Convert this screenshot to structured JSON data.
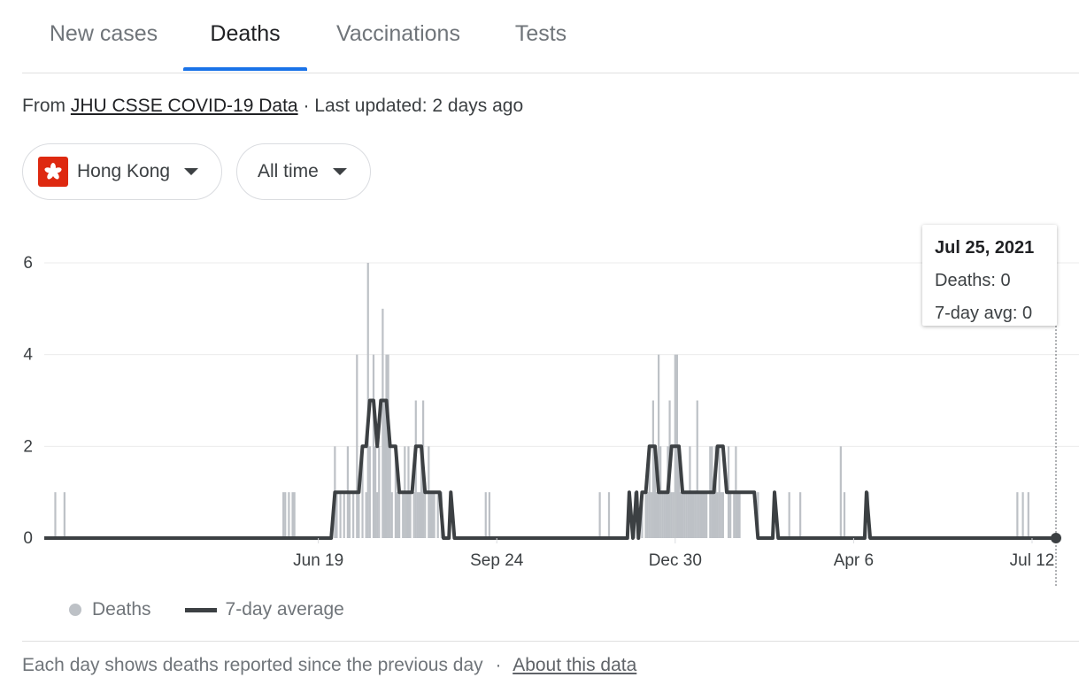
{
  "tabs": [
    {
      "label": "New cases",
      "active": false
    },
    {
      "label": "Deaths",
      "active": true
    },
    {
      "label": "Vaccinations",
      "active": false
    },
    {
      "label": "Tests",
      "active": false
    }
  ],
  "source": {
    "prefix": "From",
    "link": "JHU CSSE COVID-19 Data",
    "separator": "·",
    "updated": "Last updated: 2 days ago"
  },
  "filters": {
    "region": {
      "label": "Hong Kong",
      "icon": "hong-kong-flag-icon"
    },
    "range": {
      "label": "All time"
    }
  },
  "tooltip": {
    "date": "Jul 25, 2021",
    "deaths": "Deaths: 0",
    "avg": "7-day avg: 0"
  },
  "legend": {
    "deaths": "Deaths",
    "avg": "7-day average"
  },
  "footer": {
    "note": "Each day shows deaths reported since the previous day",
    "separator": "·",
    "link": "About this data"
  },
  "colors": {
    "accent": "#1a73e8",
    "bars": "#bdc1c6",
    "line": "#3c4043",
    "flag": "#de2910"
  },
  "chart_data": {
    "type": "bar",
    "title": "",
    "xlabel": "",
    "ylabel": "",
    "ylim": [
      0,
      6
    ],
    "yticks": [
      0,
      2,
      4,
      6
    ],
    "x_ticks": [
      "Jun 19",
      "Sep 24",
      "Dec 30",
      "Apr 6",
      "Jul 12"
    ],
    "x_range": [
      "Jan 22, 2020",
      "Jul 25, 2021"
    ],
    "grid": true,
    "legend_position": "bottom-left",
    "series": [
      {
        "name": "Deaths",
        "type": "bar",
        "points": [
          [
            "2020-01-28",
            1
          ],
          [
            "2020-02-02",
            1
          ],
          [
            "2020-05-31",
            1
          ],
          [
            "2020-06-01",
            1
          ],
          [
            "2020-06-03",
            1
          ],
          [
            "2020-06-05",
            1
          ],
          [
            "2020-06-06",
            1
          ],
          [
            "2020-06-28",
            2
          ],
          [
            "2020-06-29",
            1
          ],
          [
            "2020-07-01",
            1
          ],
          [
            "2020-07-03",
            1
          ],
          [
            "2020-07-05",
            2
          ],
          [
            "2020-07-06",
            1
          ],
          [
            "2020-07-08",
            1
          ],
          [
            "2020-07-10",
            4
          ],
          [
            "2020-07-11",
            1
          ],
          [
            "2020-07-13",
            2
          ],
          [
            "2020-07-15",
            1
          ],
          [
            "2020-07-16",
            6
          ],
          [
            "2020-07-17",
            2
          ],
          [
            "2020-07-19",
            4
          ],
          [
            "2020-07-20",
            2
          ],
          [
            "2020-07-21",
            1
          ],
          [
            "2020-07-22",
            2
          ],
          [
            "2020-07-24",
            5
          ],
          [
            "2020-07-25",
            3
          ],
          [
            "2020-07-26",
            4
          ],
          [
            "2020-07-27",
            4
          ],
          [
            "2020-07-28",
            2
          ],
          [
            "2020-07-29",
            1
          ],
          [
            "2020-07-31",
            2
          ],
          [
            "2020-08-01",
            1
          ],
          [
            "2020-08-02",
            1
          ],
          [
            "2020-08-04",
            1
          ],
          [
            "2020-08-05",
            2
          ],
          [
            "2020-08-06",
            1
          ],
          [
            "2020-08-07",
            2
          ],
          [
            "2020-08-08",
            1
          ],
          [
            "2020-08-10",
            1
          ],
          [
            "2020-08-11",
            3
          ],
          [
            "2020-08-12",
            1
          ],
          [
            "2020-08-13",
            1
          ],
          [
            "2020-08-14",
            2
          ],
          [
            "2020-08-15",
            3
          ],
          [
            "2020-08-16",
            1
          ],
          [
            "2020-08-18",
            2
          ],
          [
            "2020-08-19",
            1
          ],
          [
            "2020-08-20",
            1
          ],
          [
            "2020-08-21",
            1
          ],
          [
            "2020-08-23",
            1
          ],
          [
            "2020-08-25",
            1
          ],
          [
            "2020-09-18",
            1
          ],
          [
            "2020-09-20",
            1
          ],
          [
            "2020-11-19",
            1
          ],
          [
            "2020-11-24",
            1
          ],
          [
            "2020-12-08",
            1
          ],
          [
            "2020-12-12",
            1
          ],
          [
            "2020-12-14",
            1
          ],
          [
            "2020-12-15",
            1
          ],
          [
            "2020-12-16",
            2
          ],
          [
            "2020-12-17",
            1
          ],
          [
            "2020-12-18",
            3
          ],
          [
            "2020-12-19",
            2
          ],
          [
            "2020-12-20",
            1
          ],
          [
            "2020-12-21",
            4
          ],
          [
            "2020-12-22",
            2
          ],
          [
            "2020-12-23",
            1
          ],
          [
            "2020-12-24",
            1
          ],
          [
            "2020-12-25",
            1
          ],
          [
            "2020-12-26",
            2
          ],
          [
            "2020-12-27",
            3
          ],
          [
            "2020-12-28",
            1
          ],
          [
            "2020-12-29",
            1
          ],
          [
            "2020-12-30",
            4
          ],
          [
            "2020-12-31",
            4
          ],
          [
            "2021-01-01",
            2
          ],
          [
            "2021-01-02",
            1
          ],
          [
            "2021-01-03",
            1
          ],
          [
            "2021-01-04",
            1
          ],
          [
            "2021-01-05",
            1
          ],
          [
            "2021-01-06",
            1
          ],
          [
            "2021-01-07",
            2
          ],
          [
            "2021-01-08",
            1
          ],
          [
            "2021-01-09",
            1
          ],
          [
            "2021-01-10",
            1
          ],
          [
            "2021-01-11",
            3
          ],
          [
            "2021-01-12",
            1
          ],
          [
            "2021-01-13",
            1
          ],
          [
            "2021-01-14",
            1
          ],
          [
            "2021-01-15",
            1
          ],
          [
            "2021-01-16",
            1
          ],
          [
            "2021-01-18",
            2
          ],
          [
            "2021-01-19",
            2
          ],
          [
            "2021-01-20",
            1
          ],
          [
            "2021-01-21",
            2
          ],
          [
            "2021-01-22",
            1
          ],
          [
            "2021-01-23",
            2
          ],
          [
            "2021-01-24",
            1
          ],
          [
            "2021-01-25",
            1
          ],
          [
            "2021-01-28",
            2
          ],
          [
            "2021-01-29",
            1
          ],
          [
            "2021-01-31",
            1
          ],
          [
            "2021-02-01",
            2
          ],
          [
            "2021-02-02",
            1
          ],
          [
            "2021-02-03",
            1
          ],
          [
            "2021-02-13",
            1
          ],
          [
            "2021-03-02",
            1
          ],
          [
            "2021-03-08",
            1
          ],
          [
            "2021-03-30",
            2
          ],
          [
            "2021-04-01",
            1
          ],
          [
            "2021-04-14",
            1
          ],
          [
            "2021-07-04",
            1
          ],
          [
            "2021-07-07",
            1
          ],
          [
            "2021-07-10",
            1
          ]
        ]
      },
      {
        "name": "7-day average",
        "type": "line",
        "points": [
          [
            "2020-01-22",
            0
          ],
          [
            "2020-06-26",
            0
          ],
          [
            "2020-06-28",
            1
          ],
          [
            "2020-07-11",
            1
          ],
          [
            "2020-07-13",
            2
          ],
          [
            "2020-07-15",
            2
          ],
          [
            "2020-07-17",
            3
          ],
          [
            "2020-07-19",
            3
          ],
          [
            "2020-07-21",
            2
          ],
          [
            "2020-07-23",
            3
          ],
          [
            "2020-07-26",
            3
          ],
          [
            "2020-07-28",
            2
          ],
          [
            "2020-07-31",
            2
          ],
          [
            "2020-08-02",
            1
          ],
          [
            "2020-08-09",
            1
          ],
          [
            "2020-08-11",
            2
          ],
          [
            "2020-08-14",
            2
          ],
          [
            "2020-08-16",
            1
          ],
          [
            "2020-08-24",
            1
          ],
          [
            "2020-08-26",
            0
          ],
          [
            "2020-08-29",
            0
          ],
          [
            "2020-08-30",
            1
          ],
          [
            "2020-09-01",
            0
          ],
          [
            "2020-12-04",
            0
          ],
          [
            "2020-12-05",
            1
          ],
          [
            "2020-12-07",
            0
          ],
          [
            "2020-12-09",
            1
          ],
          [
            "2020-12-10",
            0
          ],
          [
            "2020-12-12",
            1
          ],
          [
            "2020-12-14",
            1
          ],
          [
            "2020-12-16",
            2
          ],
          [
            "2020-12-19",
            2
          ],
          [
            "2020-12-21",
            1
          ],
          [
            "2020-12-26",
            1
          ],
          [
            "2020-12-28",
            2
          ],
          [
            "2021-01-01",
            2
          ],
          [
            "2021-01-03",
            1
          ],
          [
            "2021-01-20",
            1
          ],
          [
            "2021-01-22",
            2
          ],
          [
            "2021-01-25",
            2
          ],
          [
            "2021-01-27",
            1
          ],
          [
            "2021-02-11",
            1
          ],
          [
            "2021-02-13",
            0
          ],
          [
            "2021-02-21",
            0
          ],
          [
            "2021-02-22",
            1
          ],
          [
            "2021-02-24",
            0
          ],
          [
            "2021-04-12",
            0
          ],
          [
            "2021-04-13",
            1
          ],
          [
            "2021-04-15",
            0
          ],
          [
            "2021-07-25",
            0
          ]
        ]
      }
    ]
  }
}
